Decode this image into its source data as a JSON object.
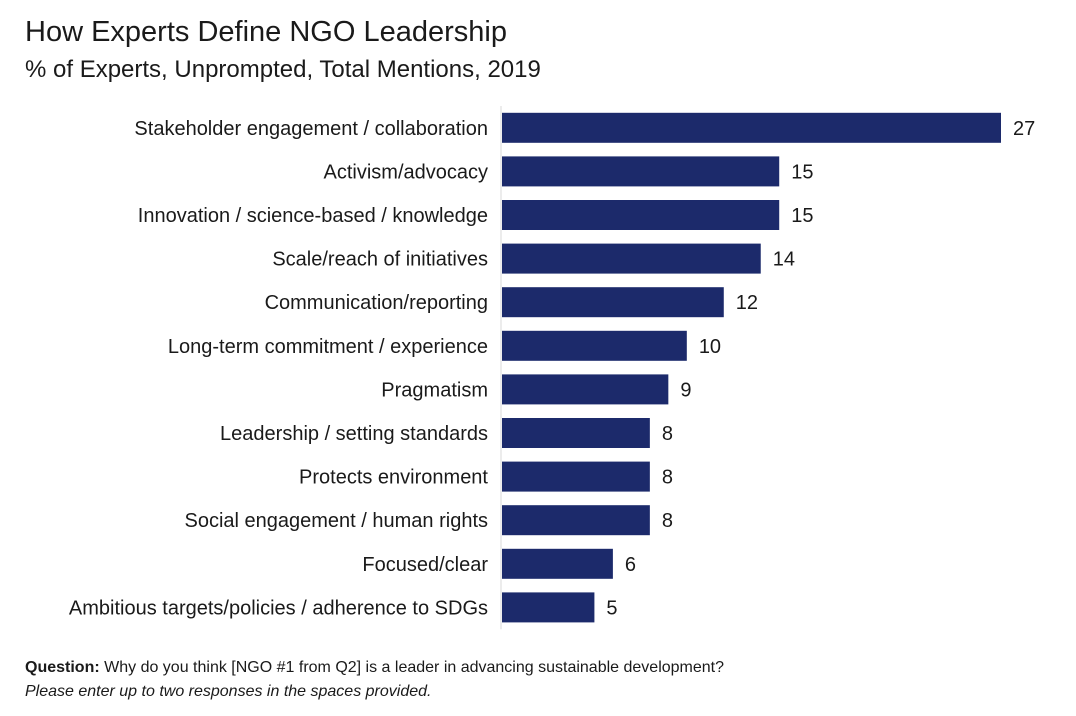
{
  "chart_data": {
    "type": "bar",
    "orientation": "horizontal",
    "title": "How Experts Define NGO Leadership",
    "subtitle": "% of Experts, Unprompted, Total Mentions, 2019",
    "categories": [
      "Stakeholder engagement / collaboration",
      "Activism/advocacy",
      "Innovation / science-based / knowledge",
      "Scale/reach of initiatives",
      "Communication/reporting",
      "Long-term commitment / experience",
      "Pragmatism",
      "Leadership / setting standards",
      "Protects environment",
      "Social engagement / human rights",
      "Focused/clear",
      "Ambitious targets/policies / adherence to SDGs"
    ],
    "values": [
      27,
      15,
      15,
      14,
      12,
      10,
      9,
      8,
      8,
      8,
      6,
      5
    ],
    "xlim": [
      0,
      27
    ],
    "bar_color": "#1c2a6b",
    "grid": false,
    "data_labels": true
  },
  "footnote": {
    "question_label": "Question:",
    "question_text": " Why do you think [NGO #1 from Q2] is a leader in advancing sustainable development?",
    "instruction": "Please enter up to two responses in the spaces provided."
  }
}
